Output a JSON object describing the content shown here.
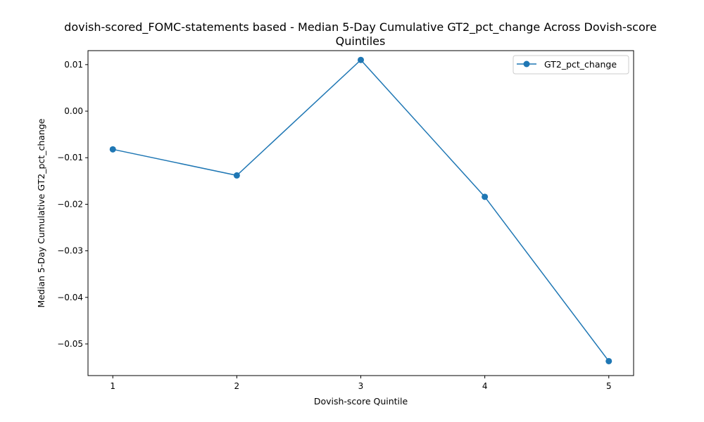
{
  "chart_data": {
    "type": "line",
    "title_lines": [
      "dovish-scored_FOMC-statements based - Median 5-Day Cumulative GT2_pct_change Across Dovish-score",
      "Quintiles"
    ],
    "xlabel": "Dovish-score Quintile",
    "ylabel": "Median 5-Day Cumulative GT2_pct_change",
    "x": [
      1,
      2,
      3,
      4,
      5
    ],
    "x_tick_labels": [
      "1",
      "2",
      "3",
      "4",
      "5"
    ],
    "y_ticks": [
      0.01,
      0.0,
      -0.01,
      -0.02,
      -0.03,
      -0.04,
      -0.05
    ],
    "y_tick_labels": [
      "0.01",
      "0.00",
      "−0.01",
      "−0.02",
      "−0.03",
      "−0.04",
      "−0.05"
    ],
    "xlim": [
      0.8,
      5.2
    ],
    "ylim": [
      -0.0568,
      0.013
    ],
    "series": [
      {
        "name": "GT2_pct_change",
        "color": "#1f77b4",
        "marker": "circle",
        "values": [
          -0.0082,
          -0.0138,
          0.011,
          -0.0184,
          -0.0537
        ]
      }
    ],
    "legend_position": "top-right",
    "grid": false
  }
}
